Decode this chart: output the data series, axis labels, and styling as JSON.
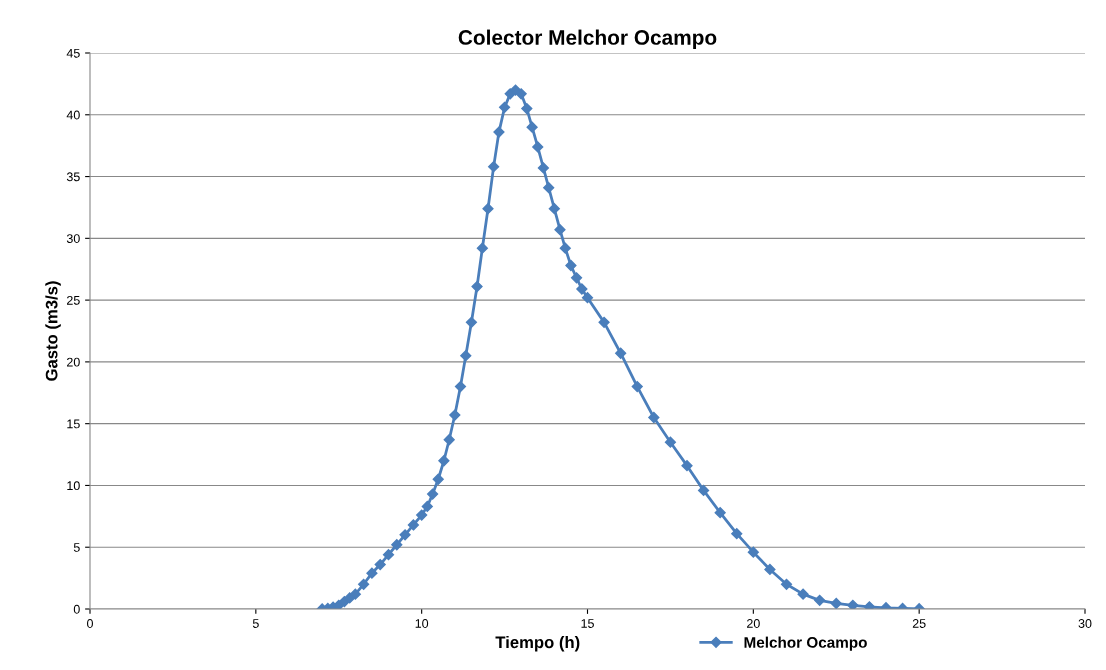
{
  "chart_data": {
    "type": "line",
    "title": "Colector Melchor Ocampo",
    "xlabel": "Tiempo (h)",
    "ylabel": "Gasto (m3/s)",
    "xlim": [
      0,
      30
    ],
    "xticks": [
      0,
      5,
      10,
      15,
      20,
      25,
      30
    ],
    "ylim": [
      0,
      45
    ],
    "yticks": [
      0,
      5,
      10,
      15,
      20,
      25,
      30,
      35,
      40,
      45
    ],
    "grid": "y",
    "legend": "bottom",
    "marker": "diamond",
    "line_style": "solid",
    "series": [
      {
        "name": "Melchor Ocampo",
        "color": "#4a7ebb",
        "x": [
          7,
          7.17,
          7.33,
          7.5,
          7.67,
          7.83,
          8,
          8.25,
          8.5,
          8.75,
          9,
          9.25,
          9.5,
          9.75,
          10,
          10.17,
          10.33,
          10.5,
          10.67,
          10.83,
          11,
          11.17,
          11.33,
          11.5,
          11.67,
          11.83,
          12,
          12.17,
          12.33,
          12.5,
          12.67,
          12.83,
          13,
          13.17,
          13.33,
          13.5,
          13.67,
          13.83,
          14,
          14.17,
          14.33,
          14.5,
          14.67,
          14.83,
          15,
          15.5,
          16,
          16.5,
          17,
          17.5,
          18,
          18.5,
          19,
          19.5,
          20,
          20.5,
          21,
          21.5,
          22,
          22.5,
          23,
          23.5,
          24,
          24.5,
          25
        ],
        "values": [
          0,
          0.05,
          0.15,
          0.3,
          0.6,
          0.9,
          1.2,
          2.0,
          2.9,
          3.6,
          4.4,
          5.2,
          6.0,
          6.8,
          7.6,
          8.3,
          9.3,
          10.5,
          12.0,
          13.7,
          15.7,
          18.0,
          20.5,
          23.2,
          26.1,
          29.2,
          32.4,
          35.8,
          38.6,
          40.6,
          41.7,
          42.0,
          41.7,
          40.5,
          39.0,
          37.4,
          35.7,
          34.1,
          32.4,
          30.7,
          29.2,
          27.8,
          26.8,
          25.9,
          25.2,
          23.2,
          20.7,
          18.0,
          15.5,
          13.5,
          11.6,
          9.6,
          7.8,
          6.1,
          4.6,
          3.2,
          2.0,
          1.2,
          0.7,
          0.45,
          0.3,
          0.18,
          0.1,
          0.05,
          0.02
        ]
      }
    ]
  }
}
